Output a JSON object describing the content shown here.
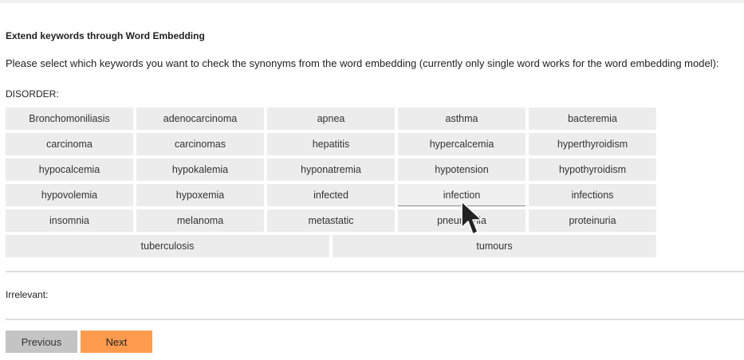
{
  "heading": "Extend keywords through Word Embedding",
  "instructions": "Please select which keywords you want to check the synonyms from the word embedding (currently only single word works for the word embedding model):",
  "category_label": "DISORDER:",
  "keyword_rows": [
    [
      "Bronchomoniliasis",
      "adenocarcinoma",
      "apnea",
      "asthma",
      "bacteremia"
    ],
    [
      "carcinoma",
      "carcinomas",
      "hepatitis",
      "hypercalcemia",
      "hyperthyroidism"
    ],
    [
      "hypocalcemia",
      "hypokalemia",
      "hyponatremia",
      "hypotension",
      "hypothyroidism"
    ],
    [
      "hypovolemia",
      "hypoxemia",
      "infected",
      "infection",
      "infections"
    ],
    [
      "insomnia",
      "melanoma",
      "metastatic",
      "pneumonia",
      "proteinuria"
    ],
    [
      "tuberculosis",
      "tumours"
    ]
  ],
  "hovered_keyword": "infection",
  "irrelevant_label": "Irrelevant:",
  "buttons": {
    "previous": "Previous",
    "next": "Next"
  },
  "colors": {
    "next_button": "#ff9b4f",
    "previous_button": "#c4c4c4",
    "keyword_bg": "#ececec"
  },
  "cursor_icon": "mouse-pointer-icon"
}
